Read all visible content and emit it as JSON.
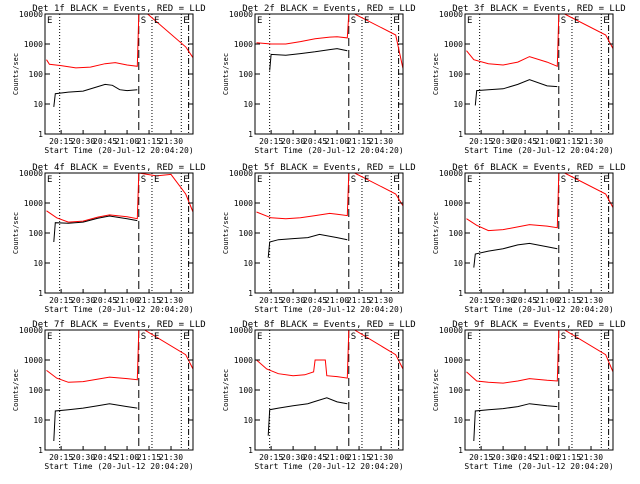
{
  "colors": {
    "background": "#ffffff",
    "events": "#000000",
    "lld": "#ff0000"
  },
  "figure": {
    "xlabel": "Start Time (20-Jul-12 20:04:20)",
    "ylabel": "Counts/sec"
  },
  "chart_data": [
    {
      "type": "line",
      "title": "Det 1f BLACK = Events, RED = LLD",
      "x_ticks": [
        "20:15",
        "20:30",
        "20:45",
        "21:00",
        "21:15",
        "21:30"
      ],
      "y_ticks": [
        "1",
        "10",
        "100",
        "1000",
        "10000"
      ],
      "yscale": "log",
      "ylim": [
        1,
        10000
      ],
      "xlim": [
        "20:04",
        "21:45"
      ],
      "marker_labels": [
        "S",
        "E",
        "E"
      ],
      "vertical_lines": [
        {
          "t": "20:14",
          "style": "dotted"
        },
        {
          "t": "21:08",
          "style": "dashed"
        },
        {
          "t": "21:17",
          "style": "dotted"
        },
        {
          "t": "21:37",
          "style": "dotted"
        },
        {
          "t": "21:42",
          "style": "dash-dot"
        }
      ],
      "series": [
        {
          "name": "LLD",
          "color": "#ff0000",
          "x": [
            "20:05",
            "20:07",
            "20:15",
            "20:25",
            "20:35",
            "20:45",
            "20:52",
            "21:00",
            "21:07",
            "21:08",
            "21:10",
            "21:14",
            "21:40",
            "21:45"
          ],
          "values": [
            300,
            210,
            190,
            160,
            170,
            220,
            240,
            200,
            180,
            10000,
            10000,
            10000,
            800,
            350
          ]
        },
        {
          "name": "Events",
          "color": "#000000",
          "x": [
            "20:10",
            "20:11",
            "20:20",
            "20:30",
            "20:40",
            "20:45",
            "20:50",
            "20:55",
            "21:00",
            "21:07"
          ],
          "values": [
            8,
            22,
            25,
            27,
            38,
            45,
            42,
            30,
            28,
            30
          ]
        }
      ]
    },
    {
      "type": "line",
      "title": "Det 2f BLACK = Events, RED = LLD",
      "x_ticks": [
        "20:15",
        "20:30",
        "20:45",
        "21:00",
        "21:15",
        "21:30"
      ],
      "y_ticks": [
        "1",
        "10",
        "100",
        "1000",
        "10000"
      ],
      "yscale": "log",
      "ylim": [
        1,
        10000
      ],
      "xlim": [
        "20:04",
        "21:45"
      ],
      "marker_labels": [
        "S",
        "E",
        "E"
      ],
      "vertical_lines": [
        {
          "t": "20:14",
          "style": "dotted"
        },
        {
          "t": "21:08",
          "style": "dashed"
        },
        {
          "t": "21:17",
          "style": "dotted"
        },
        {
          "t": "21:37",
          "style": "dotted"
        },
        {
          "t": "21:42",
          "style": "dash-dot"
        }
      ],
      "series": [
        {
          "name": "LLD",
          "color": "#ff0000",
          "x": [
            "20:05",
            "20:15",
            "20:25",
            "20:35",
            "20:45",
            "20:55",
            "21:00",
            "21:07",
            "21:08",
            "21:12",
            "21:40",
            "21:45"
          ],
          "values": [
            1100,
            1000,
            1000,
            1200,
            1500,
            1700,
            1750,
            1600,
            10000,
            10000,
            2000,
            150
          ]
        },
        {
          "name": "Events",
          "color": "#000000",
          "x": [
            "20:14",
            "20:15",
            "20:25",
            "20:35",
            "20:45",
            "20:55",
            "21:00",
            "21:07"
          ],
          "values": [
            130,
            450,
            420,
            480,
            550,
            650,
            700,
            600
          ]
        }
      ]
    },
    {
      "type": "line",
      "title": "Det 3f BLACK = Events, RED = LLD",
      "x_ticks": [
        "20:15",
        "20:30",
        "20:45",
        "21:00",
        "21:15",
        "21:30"
      ],
      "y_ticks": [
        "1",
        "10",
        "100",
        "1000",
        "10000"
      ],
      "yscale": "log",
      "ylim": [
        1,
        10000
      ],
      "xlim": [
        "20:04",
        "21:45"
      ],
      "marker_labels": [
        "S",
        "E",
        "E"
      ],
      "vertical_lines": [
        {
          "t": "20:14",
          "style": "dotted"
        },
        {
          "t": "21:08",
          "style": "dashed"
        },
        {
          "t": "21:17",
          "style": "dotted"
        },
        {
          "t": "21:37",
          "style": "dotted"
        },
        {
          "t": "21:42",
          "style": "dash-dot"
        }
      ],
      "series": [
        {
          "name": "LLD",
          "color": "#ff0000",
          "x": [
            "20:05",
            "20:10",
            "20:20",
            "20:30",
            "20:40",
            "20:48",
            "21:00",
            "21:07",
            "21:08",
            "21:12",
            "21:40",
            "21:45"
          ],
          "values": [
            600,
            300,
            220,
            200,
            250,
            380,
            250,
            180,
            10000,
            10000,
            2000,
            700
          ]
        },
        {
          "name": "Events",
          "color": "#000000",
          "x": [
            "20:11",
            "20:12",
            "20:20",
            "20:30",
            "20:40",
            "20:48",
            "21:00",
            "21:07"
          ],
          "values": [
            9,
            28,
            30,
            32,
            45,
            65,
            40,
            38
          ]
        }
      ]
    },
    {
      "type": "line",
      "title": "Det 4f BLACK = Events, RED = LLD",
      "x_ticks": [
        "20:15",
        "20:30",
        "20:45",
        "21:00",
        "21:15",
        "21:30"
      ],
      "y_ticks": [
        "1",
        "10",
        "100",
        "1000",
        "10000"
      ],
      "yscale": "log",
      "ylim": [
        1,
        10000
      ],
      "xlim": [
        "20:04",
        "21:45"
      ],
      "marker_labels": [
        "S",
        "E",
        "E"
      ],
      "vertical_lines": [
        {
          "t": "20:14",
          "style": "dotted"
        },
        {
          "t": "21:08",
          "style": "dashed"
        },
        {
          "t": "21:17",
          "style": "dotted"
        },
        {
          "t": "21:37",
          "style": "dotted"
        },
        {
          "t": "21:42",
          "style": "dash-dot"
        }
      ],
      "series": [
        {
          "name": "LLD",
          "color": "#ff0000",
          "x": [
            "20:05",
            "20:12",
            "20:20",
            "20:30",
            "20:40",
            "20:48",
            "21:00",
            "21:07",
            "21:08",
            "21:20",
            "21:30",
            "21:40",
            "21:45"
          ],
          "values": [
            550,
            320,
            230,
            250,
            340,
            400,
            350,
            300,
            10000,
            8000,
            9000,
            2000,
            500
          ]
        },
        {
          "name": "Events",
          "color": "#000000",
          "x": [
            "20:10",
            "20:11",
            "20:20",
            "20:30",
            "20:40",
            "20:48",
            "21:00",
            "21:07"
          ],
          "values": [
            50,
            220,
            210,
            230,
            310,
            370,
            300,
            260
          ]
        }
      ]
    },
    {
      "type": "line",
      "title": "Det 5f BLACK = Events, RED = LLD",
      "x_ticks": [
        "20:15",
        "20:30",
        "20:45",
        "21:00",
        "21:15",
        "21:30"
      ],
      "y_ticks": [
        "1",
        "10",
        "100",
        "1000",
        "10000"
      ],
      "yscale": "log",
      "ylim": [
        1,
        10000
      ],
      "xlim": [
        "20:04",
        "21:45"
      ],
      "marker_labels": [
        "S",
        "E",
        "E"
      ],
      "vertical_lines": [
        {
          "t": "20:14",
          "style": "dotted"
        },
        {
          "t": "21:08",
          "style": "dashed"
        },
        {
          "t": "21:17",
          "style": "dotted"
        },
        {
          "t": "21:37",
          "style": "dotted"
        },
        {
          "t": "21:42",
          "style": "dash-dot"
        }
      ],
      "series": [
        {
          "name": "LLD",
          "color": "#ff0000",
          "x": [
            "20:05",
            "20:15",
            "20:25",
            "20:35",
            "20:45",
            "20:55",
            "21:00",
            "21:07",
            "21:08",
            "21:12",
            "21:40",
            "21:45"
          ],
          "values": [
            500,
            320,
            300,
            320,
            380,
            450,
            420,
            380,
            10000,
            10000,
            2000,
            800
          ]
        },
        {
          "name": "Events",
          "color": "#000000",
          "x": [
            "20:13",
            "20:14",
            "20:20",
            "20:30",
            "20:40",
            "20:48",
            "21:00",
            "21:07"
          ],
          "values": [
            15,
            50,
            60,
            65,
            70,
            90,
            70,
            60
          ]
        }
      ]
    },
    {
      "type": "line",
      "title": "Det 6f BLACK = Events, RED = LLD",
      "x_ticks": [
        "20:15",
        "20:30",
        "20:45",
        "21:00",
        "21:15",
        "21:30"
      ],
      "y_ticks": [
        "1",
        "10",
        "100",
        "1000",
        "10000"
      ],
      "yscale": "log",
      "ylim": [
        1,
        10000
      ],
      "xlim": [
        "20:04",
        "21:45"
      ],
      "marker_labels": [
        "S",
        "E",
        "E"
      ],
      "vertical_lines": [
        {
          "t": "20:14",
          "style": "dotted"
        },
        {
          "t": "21:08",
          "style": "dashed"
        },
        {
          "t": "21:17",
          "style": "dotted"
        },
        {
          "t": "21:37",
          "style": "dotted"
        },
        {
          "t": "21:42",
          "style": "dash-dot"
        }
      ],
      "series": [
        {
          "name": "LLD",
          "color": "#ff0000",
          "x": [
            "20:05",
            "20:12",
            "20:20",
            "20:30",
            "20:40",
            "20:48",
            "21:00",
            "21:07",
            "21:08",
            "21:12",
            "21:40",
            "21:45"
          ],
          "values": [
            300,
            180,
            120,
            130,
            160,
            190,
            170,
            150,
            10000,
            10000,
            2000,
            700
          ]
        },
        {
          "name": "Events",
          "color": "#000000",
          "x": [
            "20:10",
            "20:11",
            "20:20",
            "20:30",
            "20:40",
            "20:48",
            "21:00",
            "21:07"
          ],
          "values": [
            7,
            20,
            25,
            30,
            40,
            45,
            35,
            30
          ]
        }
      ]
    },
    {
      "type": "line",
      "title": "Det 7f BLACK = Events, RED = LLD",
      "x_ticks": [
        "20:15",
        "20:30",
        "20:45",
        "21:00",
        "21:15",
        "21:30"
      ],
      "y_ticks": [
        "1",
        "10",
        "100",
        "1000",
        "10000"
      ],
      "yscale": "log",
      "ylim": [
        1,
        10000
      ],
      "xlim": [
        "20:04",
        "21:45"
      ],
      "marker_labels": [
        "S",
        "E",
        "E"
      ],
      "vertical_lines": [
        {
          "t": "20:14",
          "style": "dotted"
        },
        {
          "t": "21:08",
          "style": "dashed"
        },
        {
          "t": "21:17",
          "style": "dotted"
        },
        {
          "t": "21:37",
          "style": "dotted"
        },
        {
          "t": "21:42",
          "style": "dash-dot"
        }
      ],
      "series": [
        {
          "name": "LLD",
          "color": "#ff0000",
          "x": [
            "20:05",
            "20:12",
            "20:20",
            "20:30",
            "20:40",
            "20:48",
            "21:00",
            "21:07",
            "21:08",
            "21:12",
            "21:40",
            "21:45"
          ],
          "values": [
            450,
            250,
            180,
            190,
            230,
            270,
            240,
            220,
            10000,
            10000,
            1500,
            500
          ]
        },
        {
          "name": "Events",
          "color": "#000000",
          "x": [
            "20:10",
            "20:11",
            "20:20",
            "20:30",
            "20:40",
            "20:48",
            "21:00",
            "21:07"
          ],
          "values": [
            2,
            20,
            22,
            25,
            30,
            35,
            28,
            25
          ]
        }
      ]
    },
    {
      "type": "line",
      "title": "Det 8f BLACK = Events, RED = LLD",
      "x_ticks": [
        "20:15",
        "20:30",
        "20:45",
        "21:00",
        "21:15",
        "21:30"
      ],
      "y_ticks": [
        "1",
        "10",
        "100",
        "1000",
        "10000"
      ],
      "yscale": "log",
      "ylim": [
        1,
        10000
      ],
      "xlim": [
        "20:04",
        "21:45"
      ],
      "marker_labels": [
        "S",
        "E",
        "E"
      ],
      "vertical_lines": [
        {
          "t": "20:14",
          "style": "dotted"
        },
        {
          "t": "21:08",
          "style": "dashed"
        },
        {
          "t": "21:17",
          "style": "dotted"
        },
        {
          "t": "21:37",
          "style": "dotted"
        },
        {
          "t": "21:42",
          "style": "dash-dot"
        }
      ],
      "series": [
        {
          "name": "LLD",
          "color": "#ff0000",
          "x": [
            "20:05",
            "20:12",
            "20:20",
            "20:30",
            "20:38",
            "20:44",
            "20:45",
            "20:52",
            "20:53",
            "21:00",
            "21:07",
            "21:08",
            "21:12",
            "21:40",
            "21:45"
          ],
          "values": [
            1000,
            500,
            350,
            300,
            320,
            400,
            1000,
            1000,
            300,
            280,
            250,
            10000,
            10000,
            1500,
            500
          ]
        },
        {
          "name": "Events",
          "color": "#000000",
          "x": [
            "20:13",
            "20:14",
            "20:20",
            "20:30",
            "20:40",
            "20:44",
            "20:53",
            "21:00",
            "21:07"
          ],
          "values": [
            3,
            22,
            25,
            30,
            35,
            40,
            55,
            40,
            35
          ]
        }
      ]
    },
    {
      "type": "line",
      "title": "Det 9f BLACK = Events, RED = LLD",
      "x_ticks": [
        "20:15",
        "20:30",
        "20:45",
        "21:00",
        "21:15",
        "21:30"
      ],
      "y_ticks": [
        "1",
        "10",
        "100",
        "1000",
        "10000"
      ],
      "yscale": "log",
      "ylim": [
        1,
        10000
      ],
      "xlim": [
        "20:04",
        "21:45"
      ],
      "marker_labels": [
        "S",
        "E",
        "E"
      ],
      "vertical_lines": [
        {
          "t": "20:14",
          "style": "dotted"
        },
        {
          "t": "21:08",
          "style": "dashed"
        },
        {
          "t": "21:17",
          "style": "dotted"
        },
        {
          "t": "21:37",
          "style": "dotted"
        },
        {
          "t": "21:42",
          "style": "dash-dot"
        }
      ],
      "series": [
        {
          "name": "LLD",
          "color": "#ff0000",
          "x": [
            "20:05",
            "20:12",
            "20:20",
            "20:30",
            "20:40",
            "20:48",
            "21:00",
            "21:07",
            "21:08",
            "21:12",
            "21:40",
            "21:45"
          ],
          "values": [
            400,
            200,
            180,
            170,
            200,
            240,
            210,
            200,
            10000,
            10000,
            1500,
            400
          ]
        },
        {
          "name": "Events",
          "color": "#000000",
          "x": [
            "20:10",
            "20:11",
            "20:20",
            "20:30",
            "20:40",
            "20:48",
            "21:00",
            "21:07"
          ],
          "values": [
            2,
            20,
            22,
            24,
            28,
            35,
            30,
            28
          ]
        }
      ]
    }
  ]
}
